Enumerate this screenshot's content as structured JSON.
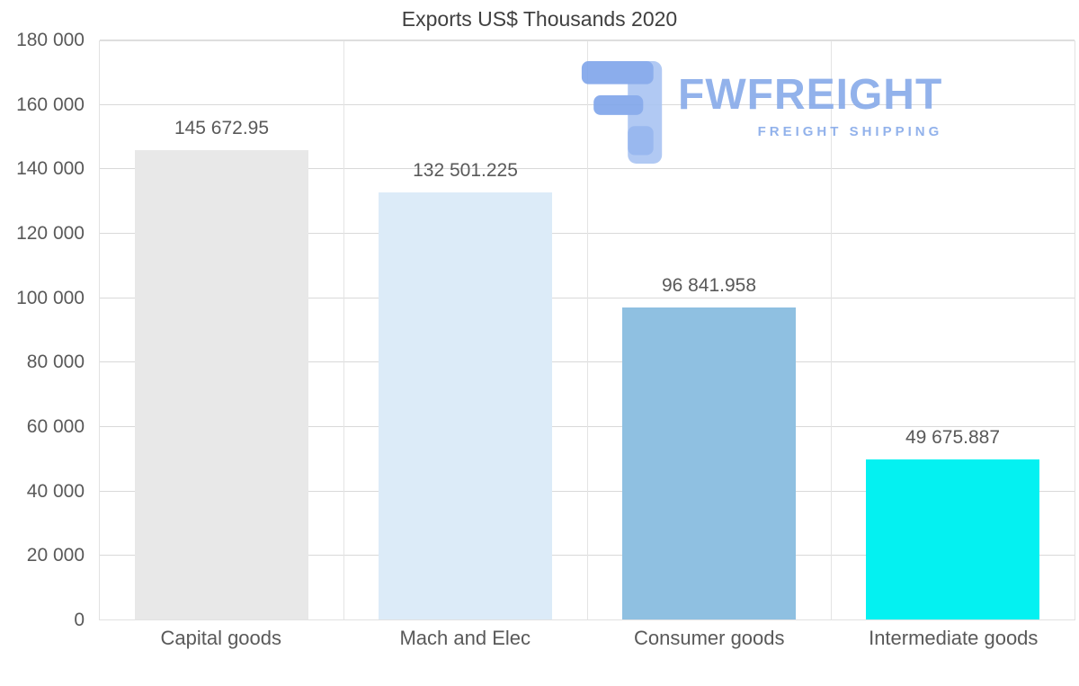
{
  "title": "Exports US$ Thousands 2020",
  "watermark": {
    "brand": "FWFREIGHT",
    "tagline": "FREIGHT SHIPPING",
    "icon": "freight-logo-icon",
    "color": "#87aae9"
  },
  "chart_data": {
    "type": "bar",
    "title": "Exports US$ Thousands 2020",
    "categories": [
      "Capital goods",
      "Mach and Elec",
      "Consumer goods",
      "Intermediate goods"
    ],
    "values": [
      145672.95,
      132501.225,
      96841.958,
      49675.887
    ],
    "value_labels": [
      "145 672.95",
      "132 501.225",
      "96 841.958",
      "49 675.887"
    ],
    "bar_colors": [
      "#e8e8e8",
      "#dcebf8",
      "#8fc0e1",
      "#04f1f1"
    ],
    "xlabel": "",
    "ylabel": "",
    "ylim": [
      0,
      180000
    ],
    "ytick_step": 20000,
    "ytick_labels": [
      "0",
      "20 000",
      "40 000",
      "60 000",
      "80 000",
      "100 000",
      "120 000",
      "140 000",
      "160 000",
      "180 000"
    ],
    "grid": true,
    "legend_position": "none",
    "text_color": "#595959",
    "gridline_color": "#d9d9d9"
  }
}
